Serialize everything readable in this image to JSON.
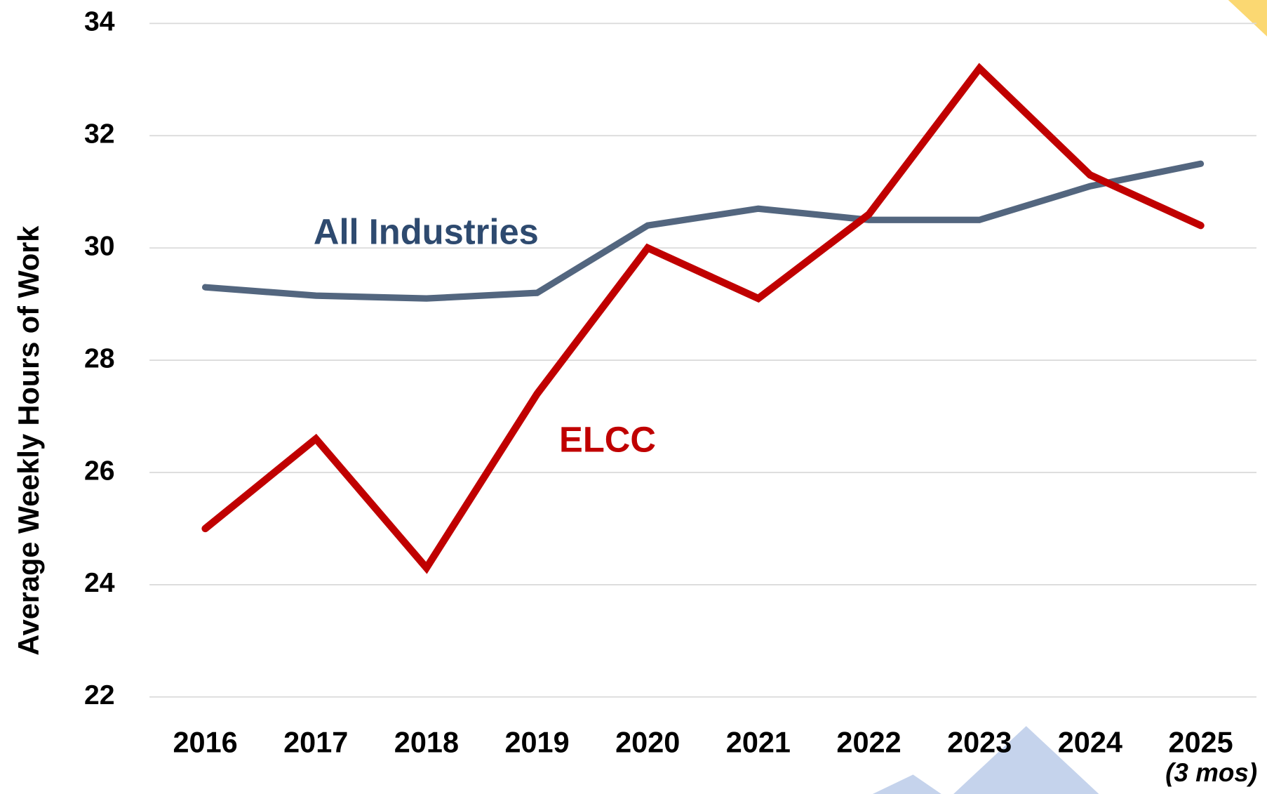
{
  "chart_data": {
    "type": "line",
    "y_axis_label": "Average Weekly Hours of Work",
    "categories": [
      "2016",
      "2017",
      "2018",
      "2019",
      "2020",
      "2021",
      "2022",
      "2023",
      "2024",
      "2025"
    ],
    "annotations": [
      "(3 mos)"
    ],
    "series": [
      {
        "name": "All Industries",
        "color": "#53667f",
        "label_color": "#2e4a6f",
        "values": [
          29.3,
          29.15,
          29.1,
          29.2,
          30.4,
          30.7,
          30.5,
          30.5,
          31.1,
          31.5
        ]
      },
      {
        "name": "ELCC",
        "color": "#c00000",
        "label_color": "#c00000",
        "values": [
          25.0,
          26.6,
          24.3,
          27.4,
          30.0,
          29.1,
          30.6,
          33.2,
          31.3,
          30.4
        ]
      }
    ],
    "ylim": [
      22,
      34
    ],
    "yticks": [
      22,
      24,
      26,
      28,
      30,
      32,
      34
    ],
    "grid": true
  }
}
